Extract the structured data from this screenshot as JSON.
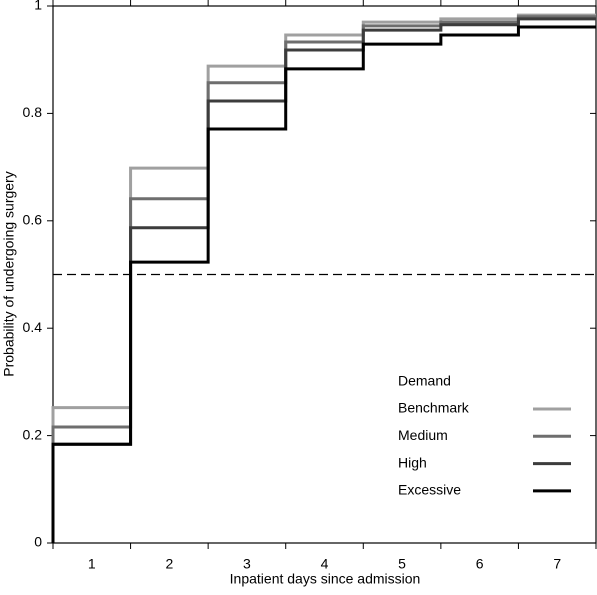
{
  "chart_data": {
    "type": "step",
    "categories": [
      "1",
      "2",
      "3",
      "4",
      "5",
      "6",
      "7"
    ],
    "series": [
      {
        "name": "Benchmark",
        "color": "#a0a0a0",
        "values": [
          0.252,
          0.698,
          0.888,
          0.946,
          0.97,
          0.976,
          0.983
        ]
      },
      {
        "name": "Medium",
        "color": "#6e6e6e",
        "values": [
          0.216,
          0.641,
          0.857,
          0.933,
          0.963,
          0.97,
          0.98
        ]
      },
      {
        "name": "High",
        "color": "#3c3c3c",
        "values": [
          0.184,
          0.587,
          0.823,
          0.918,
          0.955,
          0.965,
          0.976
        ]
      },
      {
        "name": "Excessive",
        "color": "#000000",
        "values": [
          0.184,
          0.523,
          0.771,
          0.883,
          0.929,
          0.946,
          0.961
        ]
      }
    ],
    "ylim": [
      0,
      1
    ],
    "yticks": [
      0,
      0.2,
      0.4,
      0.6,
      0.8,
      1
    ],
    "hline": 0.5,
    "xlabel": "Inpatient days since admission",
    "ylabel": "Probability of undergoing surgery",
    "legend_title": "Demand"
  }
}
